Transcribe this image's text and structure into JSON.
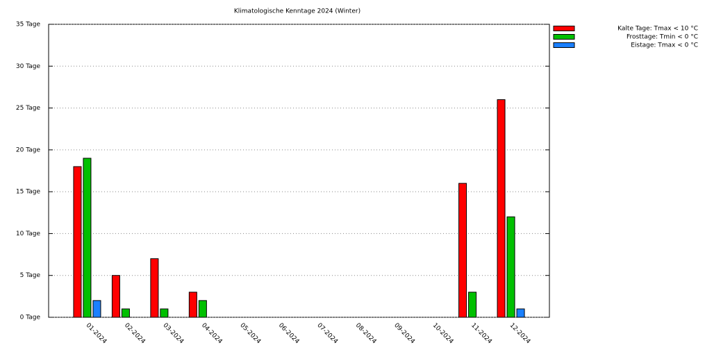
{
  "chart_data": {
    "type": "bar",
    "title": "Klimatologische Kenntage 2024 (Winter)",
    "categories": [
      "01-2024",
      "02-2024",
      "03-2024",
      "04-2024",
      "05-2024",
      "06-2024",
      "07-2024",
      "08-2024",
      "09-2024",
      "10-2024",
      "11-2024",
      "12-2024"
    ],
    "series": [
      {
        "name": "Kalte Tage: Tmax < 10 °C",
        "color": "#ff0000",
        "values": [
          18,
          5,
          7,
          3,
          0,
          0,
          0,
          0,
          0,
          0,
          16,
          26
        ]
      },
      {
        "name": "Frosttage: Tmin < 0 °C",
        "color": "#00c000",
        "values": [
          19,
          1,
          1,
          2,
          0,
          0,
          0,
          0,
          0,
          0,
          3,
          12
        ]
      },
      {
        "name": "Eistage: Tmax < 0 °C",
        "color": "#1a80ff",
        "values": [
          2,
          0,
          0,
          0,
          0,
          0,
          0,
          0,
          0,
          0,
          0,
          1
        ]
      }
    ],
    "ylim": [
      0,
      35
    ],
    "yticks": [
      {
        "value": 0,
        "label": "0 Tage"
      },
      {
        "value": 5,
        "label": "5 Tage"
      },
      {
        "value": 10,
        "label": "10 Tage"
      },
      {
        "value": 15,
        "label": "15 Tage"
      },
      {
        "value": 20,
        "label": "20 Tage"
      },
      {
        "value": 25,
        "label": "25 Tage"
      },
      {
        "value": 30,
        "label": "30 Tage"
      },
      {
        "value": 35,
        "label": "35 Tage"
      }
    ],
    "grid": true,
    "legend": "outside-right"
  }
}
